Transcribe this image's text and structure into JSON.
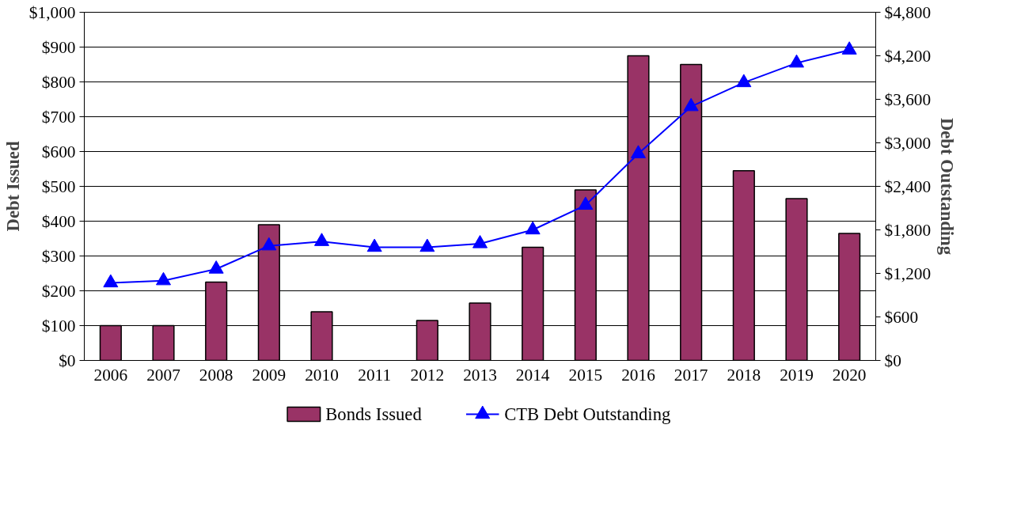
{
  "chart_data": {
    "type": "bar",
    "categories": [
      "2006",
      "2007",
      "2008",
      "2009",
      "2010",
      "2011",
      "2012",
      "2013",
      "2014",
      "2015",
      "2016",
      "2017",
      "2018",
      "2019",
      "2020"
    ],
    "ylabel": "Debt Issued",
    "y2label": "Debt Outstanding",
    "ylim": [
      0,
      1000
    ],
    "yticks": [
      {
        "value": 0,
        "label": "$0"
      },
      {
        "value": 100,
        "label": "$100"
      },
      {
        "value": 200,
        "label": "$200"
      },
      {
        "value": 300,
        "label": "$300"
      },
      {
        "value": 400,
        "label": "$400"
      },
      {
        "value": 500,
        "label": "$500"
      },
      {
        "value": 600,
        "label": "$600"
      },
      {
        "value": 700,
        "label": "$700"
      },
      {
        "value": 800,
        "label": "$800"
      },
      {
        "value": 900,
        "label": "$900"
      },
      {
        "value": 1000,
        "label": "$1,000"
      }
    ],
    "y2lim": [
      0,
      4800
    ],
    "y2ticks": [
      {
        "value": 0,
        "label": "$0"
      },
      {
        "value": 600,
        "label": "$600"
      },
      {
        "value": 1200,
        "label": "$1,200"
      },
      {
        "value": 1800,
        "label": "$1,800"
      },
      {
        "value": 2400,
        "label": "$2,400"
      },
      {
        "value": 3000,
        "label": "$3,000"
      },
      {
        "value": 3600,
        "label": "$3,600"
      },
      {
        "value": 4200,
        "label": "$4,200"
      },
      {
        "value": 4800,
        "label": "$4,800"
      }
    ],
    "grid": "y",
    "legend": "bottom",
    "series": [
      {
        "name": "Bonds Issued",
        "color": "#993366",
        "values": [
          100,
          100,
          225,
          390,
          140,
          null,
          115,
          165,
          325,
          490,
          875,
          850,
          545,
          465,
          365
        ]
      },
      {
        "name": "CTB Debt Outstanding",
        "type": "line",
        "axis": "y2",
        "color": "#0000ff",
        "marker": "triangle",
        "values": [
          1070,
          1100,
          1260,
          1580,
          1640,
          1560,
          1560,
          1610,
          1800,
          2140,
          2850,
          3500,
          3830,
          4100,
          4280
        ]
      }
    ]
  }
}
